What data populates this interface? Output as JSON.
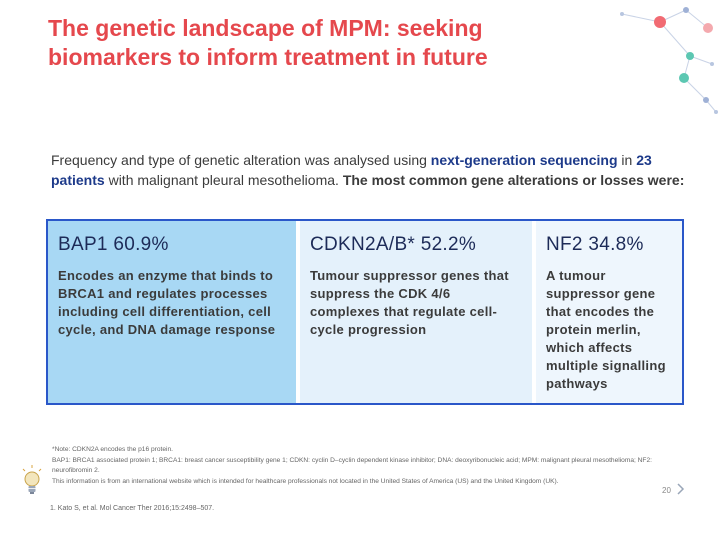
{
  "title": "The genetic landscape of MPM: seeking biomarkers to inform treatment in future",
  "intro": {
    "part1": "Frequency and type of genetic alteration was analysed using ",
    "hl1": "next-generation sequencing",
    "part2": " in ",
    "hl2": "23 patients",
    "part3": " with malignant pleural mesothelioma. ",
    "strong": "The most common gene alterations or losses were:"
  },
  "genes": [
    {
      "heading": "BAP1 60.9%",
      "description": "Encodes an enzyme that binds to BRCA1 and regulates processes including cell differentiation, cell cycle, and DNA damage response"
    },
    {
      "heading": "CDKN2A/B* 52.2%",
      "description": "Tumour suppressor genes that suppress the CDK 4/6 complexes that regulate cell-cycle progression"
    },
    {
      "heading": "NF2 34.8%",
      "description": "A tumour suppressor gene that encodes the protein merlin, which affects multiple signalling pathways"
    }
  ],
  "footnotes": {
    "note": "*Note: CDKN2A encodes the p16 protein.",
    "abbreviations": "BAP1: BRCA1 associated protein 1; BRCA1: breast cancer susceptibility gene 1; CDKN: cyclin D–cyclin dependent kinase inhibitor; DNA: deoxyribonucleic acid; MPM: malignant pleural mesothelioma; NF2: neurofibromin 2.",
    "disclaimer": "This information is from an international website which is intended for healthcare professionals not located in the United States of America (US) and the United Kingdom (UK).",
    "reference": "1. Kato S, et al. Mol Cancer Ther 2016;15:2498–507."
  },
  "page_number": "20",
  "colors": {
    "title": "#e5484d",
    "highlight": "#1d3a8a",
    "border": "#2a57c9",
    "col1": "#a8d8f4"
  }
}
